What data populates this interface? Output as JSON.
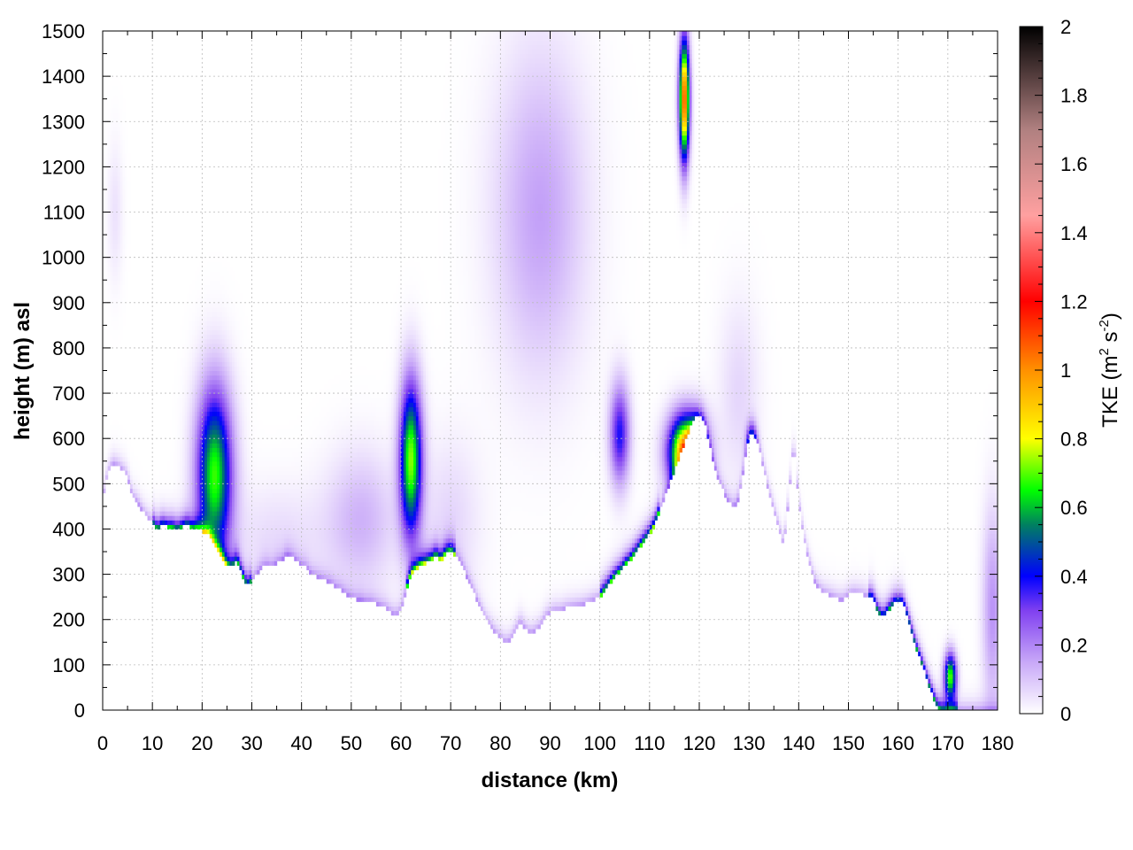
{
  "chart_data": {
    "type": "heatmap",
    "xlabel": "distance (km)",
    "ylabel": "height (m) asl",
    "xlim": [
      0,
      180
    ],
    "ylim": [
      0,
      1500
    ],
    "x_ticks": [
      "0",
      "10",
      "20",
      "30",
      "40",
      "50",
      "60",
      "70",
      "80",
      "90",
      "100",
      "110",
      "120",
      "130",
      "140",
      "150",
      "160",
      "170",
      "180"
    ],
    "y_ticks": [
      "0",
      "100",
      "200",
      "300",
      "400",
      "500",
      "600",
      "700",
      "800",
      "900",
      "1000",
      "1100",
      "1200",
      "1300",
      "1400",
      "1500"
    ],
    "grid": true,
    "colorbar": {
      "label_main": "TKE (m",
      "label_sup1": "2",
      "label_mid": " s",
      "label_sup2": "-2",
      "label_end": ")",
      "range": [
        0,
        2
      ],
      "ticks": [
        "0",
        "0.2",
        "0.4",
        "0.6",
        "0.8",
        "1",
        "1.2",
        "1.4",
        "1.6",
        "1.8",
        "2"
      ],
      "stops": [
        {
          "v": 0.0,
          "color": "#ffffff"
        },
        {
          "v": 0.15,
          "color": "#c8a8f8"
        },
        {
          "v": 0.3,
          "color": "#8040f0"
        },
        {
          "v": 0.4,
          "color": "#0000ff"
        },
        {
          "v": 0.55,
          "color": "#008060"
        },
        {
          "v": 0.65,
          "color": "#00ff00"
        },
        {
          "v": 0.8,
          "color": "#ffff00"
        },
        {
          "v": 1.0,
          "color": "#ff9000"
        },
        {
          "v": 1.2,
          "color": "#ff0000"
        },
        {
          "v": 1.45,
          "color": "#ffa0a0"
        },
        {
          "v": 1.7,
          "color": "#b08080"
        },
        {
          "v": 2.0,
          "color": "#000000"
        }
      ]
    },
    "terrain": [
      [
        0,
        465
      ],
      [
        1,
        520
      ],
      [
        2,
        545
      ],
      [
        3,
        540
      ],
      [
        4,
        530
      ],
      [
        5,
        515
      ],
      [
        6,
        470
      ],
      [
        7,
        460
      ],
      [
        8,
        440
      ],
      [
        9,
        425
      ],
      [
        10,
        415
      ],
      [
        11,
        400
      ],
      [
        12,
        410
      ],
      [
        13,
        405
      ],
      [
        14,
        405
      ],
      [
        15,
        400
      ],
      [
        16,
        405
      ],
      [
        17,
        410
      ],
      [
        18,
        400
      ],
      [
        19,
        400
      ],
      [
        20,
        395
      ],
      [
        21,
        390
      ],
      [
        22,
        375
      ],
      [
        23,
        355
      ],
      [
        24,
        340
      ],
      [
        25,
        320
      ],
      [
        26,
        315
      ],
      [
        27,
        330
      ],
      [
        28,
        300
      ],
      [
        29,
        275
      ],
      [
        30,
        285
      ],
      [
        31,
        300
      ],
      [
        32,
        315
      ],
      [
        33,
        320
      ],
      [
        34,
        315
      ],
      [
        35,
        325
      ],
      [
        36,
        330
      ],
      [
        37,
        345
      ],
      [
        38,
        340
      ],
      [
        39,
        330
      ],
      [
        40,
        320
      ],
      [
        41,
        315
      ],
      [
        42,
        300
      ],
      [
        43,
        295
      ],
      [
        44,
        290
      ],
      [
        45,
        285
      ],
      [
        46,
        280
      ],
      [
        47,
        270
      ],
      [
        48,
        265
      ],
      [
        49,
        255
      ],
      [
        50,
        250
      ],
      [
        51,
        245
      ],
      [
        52,
        245
      ],
      [
        53,
        240
      ],
      [
        54,
        240
      ],
      [
        55,
        235
      ],
      [
        56,
        230
      ],
      [
        57,
        225
      ],
      [
        58,
        215
      ],
      [
        59,
        210
      ],
      [
        60,
        220
      ],
      [
        61,
        260
      ],
      [
        62,
        300
      ],
      [
        63,
        310
      ],
      [
        64,
        320
      ],
      [
        65,
        325
      ],
      [
        66,
        330
      ],
      [
        67,
        340
      ],
      [
        68,
        330
      ],
      [
        69,
        345
      ],
      [
        70,
        350
      ],
      [
        71,
        340
      ],
      [
        72,
        325
      ],
      [
        73,
        300
      ],
      [
        74,
        275
      ],
      [
        75,
        250
      ],
      [
        76,
        225
      ],
      [
        77,
        200
      ],
      [
        78,
        185
      ],
      [
        79,
        170
      ],
      [
        80,
        160
      ],
      [
        81,
        150
      ],
      [
        82,
        155
      ],
      [
        83,
        175
      ],
      [
        84,
        195
      ],
      [
        85,
        180
      ],
      [
        86,
        170
      ],
      [
        87,
        175
      ],
      [
        88,
        185
      ],
      [
        89,
        205
      ],
      [
        90,
        215
      ],
      [
        91,
        220
      ],
      [
        92,
        220
      ],
      [
        93,
        225
      ],
      [
        94,
        228
      ],
      [
        95,
        230
      ],
      [
        96,
        232
      ],
      [
        97,
        235
      ],
      [
        98,
        240
      ],
      [
        99,
        245
      ],
      [
        100,
        250
      ],
      [
        101,
        265
      ],
      [
        102,
        280
      ],
      [
        103,
        295
      ],
      [
        104,
        305
      ],
      [
        105,
        320
      ],
      [
        106,
        330
      ],
      [
        107,
        345
      ],
      [
        108,
        360
      ],
      [
        109,
        375
      ],
      [
        110,
        390
      ],
      [
        111,
        410
      ],
      [
        112,
        440
      ],
      [
        113,
        470
      ],
      [
        114,
        500
      ],
      [
        115,
        530
      ],
      [
        116,
        560
      ],
      [
        117,
        590
      ],
      [
        118,
        620
      ],
      [
        119,
        645
      ],
      [
        120,
        655
      ],
      [
        121,
        640
      ],
      [
        122,
        590
      ],
      [
        123,
        540
      ],
      [
        124,
        505
      ],
      [
        125,
        480
      ],
      [
        126,
        460
      ],
      [
        127,
        450
      ],
      [
        128,
        470
      ],
      [
        129,
        540
      ],
      [
        130,
        605
      ],
      [
        131,
        610
      ],
      [
        132,
        580
      ],
      [
        133,
        530
      ],
      [
        134,
        480
      ],
      [
        135,
        440
      ],
      [
        136,
        400
      ],
      [
        137,
        360
      ],
      [
        138,
        470
      ],
      [
        139,
        590
      ],
      [
        140,
        460
      ],
      [
        141,
        380
      ],
      [
        142,
        330
      ],
      [
        143,
        290
      ],
      [
        144,
        270
      ],
      [
        145,
        260
      ],
      [
        146,
        255
      ],
      [
        147,
        250
      ],
      [
        148,
        245
      ],
      [
        149,
        245
      ],
      [
        150,
        255
      ],
      [
        151,
        260
      ],
      [
        152,
        258
      ],
      [
        153,
        255
      ],
      [
        154,
        250
      ],
      [
        155,
        245
      ],
      [
        156,
        215
      ],
      [
        157,
        205
      ],
      [
        158,
        220
      ],
      [
        159,
        235
      ],
      [
        160,
        240
      ],
      [
        161,
        235
      ],
      [
        162,
        200
      ],
      [
        163,
        160
      ],
      [
        164,
        125
      ],
      [
        165,
        95
      ],
      [
        166,
        60
      ],
      [
        167,
        30
      ],
      [
        168,
        5
      ],
      [
        169,
        0
      ],
      [
        170,
        0
      ],
      [
        180,
        0
      ]
    ],
    "tke_blobs": [
      {
        "x": 22.5,
        "y": 520,
        "rx": 3.5,
        "ry": 190,
        "peak": 0.68
      },
      {
        "x": 62.0,
        "y": 555,
        "rx": 2.2,
        "ry": 170,
        "peak": 0.72
      },
      {
        "x": 104.0,
        "y": 610,
        "rx": 2.0,
        "ry": 110,
        "peak": 0.38
      },
      {
        "x": 117.0,
        "y": 1350,
        "rx": 1.0,
        "ry": 130,
        "peak": 1.1
      },
      {
        "x": 117.5,
        "y": 570,
        "rx": 3.5,
        "ry": 80,
        "peak": 1.05
      },
      {
        "x": 130.5,
        "y": 590,
        "rx": 1.0,
        "ry": 40,
        "peak": 0.42
      },
      {
        "x": 170.5,
        "y": 75,
        "rx": 1.2,
        "ry": 50,
        "peak": 0.7
      },
      {
        "x": 88.0,
        "y": 1100,
        "rx": 9.0,
        "ry": 350,
        "peak": 0.16
      },
      {
        "x": 52.0,
        "y": 420,
        "rx": 7.0,
        "ry": 150,
        "peak": 0.13
      },
      {
        "x": 35.0,
        "y": 380,
        "rx": 10.0,
        "ry": 120,
        "peak": 0.06
      },
      {
        "x": 70.0,
        "y": 420,
        "rx": 6.0,
        "ry": 180,
        "peak": 0.07
      },
      {
        "x": 179.0,
        "y": 220,
        "rx": 2.0,
        "ry": 220,
        "peak": 0.18
      },
      {
        "x": 128.0,
        "y": 700,
        "rx": 4.0,
        "ry": 200,
        "peak": 0.07
      },
      {
        "x": 2.5,
        "y": 1100,
        "rx": 1.5,
        "ry": 150,
        "peak": 0.05
      }
    ],
    "surface_layers": [
      {
        "x0": 10,
        "x1": 30,
        "peak": 0.45
      },
      {
        "x0": 61,
        "x1": 71,
        "peak": 0.6
      },
      {
        "x0": 100,
        "x1": 112,
        "peak": 0.55
      },
      {
        "x0": 154,
        "x1": 172,
        "peak": 0.45
      },
      {
        "x0": 0,
        "x1": 180,
        "peak": 0.18
      }
    ]
  }
}
